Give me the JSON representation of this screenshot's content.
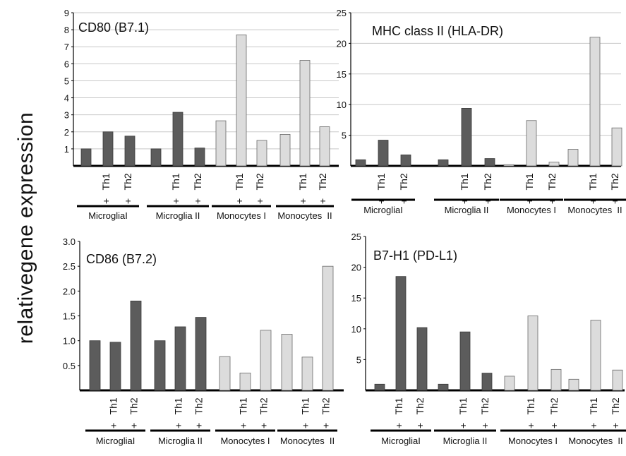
{
  "figure": {
    "ylabel": "relativegene expression"
  },
  "colors": {
    "dark": "#5c5c5c",
    "light": "#dcdcdc",
    "grid": "#c8c8c8",
    "axis": "#000000"
  },
  "chart_data": [
    {
      "type": "bar",
      "title": "CD80 (B7.1)",
      "ylim": [
        0,
        9
      ],
      "yticks": [
        "1",
        "2",
        "3",
        "4",
        "5",
        "6",
        "7",
        "8",
        "9"
      ],
      "grid": true,
      "groups": [
        "MicrogliaI",
        "Microglia II",
        "Monocytes I",
        "Monocytes  II"
      ],
      "conditions": [
        "",
        "+ Th1",
        "+ Th2"
      ],
      "values": [
        [
          1.0,
          2.0,
          1.75
        ],
        [
          1.0,
          3.15,
          1.05
        ],
        [
          2.65,
          7.7,
          1.5
        ],
        [
          1.85,
          6.2,
          2.3
        ]
      ]
    },
    {
      "type": "bar",
      "title": "MHC  class   II (HLA-DR)",
      "ylim": [
        0,
        25
      ],
      "yticks": [
        "5",
        "10",
        "15",
        "20",
        "25"
      ],
      "grid": true,
      "groups": [
        "MicrogliaI",
        "Microglia II",
        "Monocytes I",
        "Monocytes  II"
      ],
      "conditions": [
        "",
        "+ Th1",
        "+ Th2"
      ],
      "values": [
        [
          1.0,
          4.2,
          1.8
        ],
        [
          1.0,
          9.4,
          1.2
        ],
        [
          0.2,
          7.4,
          0.6
        ],
        [
          2.7,
          21.0,
          6.2
        ]
      ]
    },
    {
      "type": "bar",
      "title": "CD86 (B7.2)",
      "ylim": [
        0,
        3.0
      ],
      "yticks": [
        "0.5",
        "1.0",
        "1.5",
        "2.0",
        "2.5",
        "3.0"
      ],
      "grid": false,
      "groups": [
        "MicrogliaI",
        "Microglia II",
        "Monocytes I",
        "Monocytes  II"
      ],
      "conditions": [
        "",
        "+ Th1",
        "+ Th2"
      ],
      "values": [
        [
          1.0,
          0.97,
          1.8
        ],
        [
          1.0,
          1.28,
          1.47
        ],
        [
          0.68,
          0.35,
          1.21
        ],
        [
          1.13,
          0.67,
          2.5
        ]
      ]
    },
    {
      "type": "bar",
      "title": "B7-H1 (PD-L1)",
      "ylim": [
        0,
        25
      ],
      "yticks": [
        "5",
        "10",
        "15",
        "20",
        "25"
      ],
      "grid": false,
      "groups": [
        "MicrogliaI",
        "Microglia II",
        "Monocytes I",
        "Monocytes  II"
      ],
      "conditions": [
        "",
        "+ Th1",
        "+ Th2"
      ],
      "values": [
        [
          1.0,
          18.5,
          10.2
        ],
        [
          1.0,
          9.5,
          2.8
        ],
        [
          2.3,
          12.1,
          3.4
        ],
        [
          1.8,
          11.4,
          3.3
        ]
      ]
    }
  ]
}
